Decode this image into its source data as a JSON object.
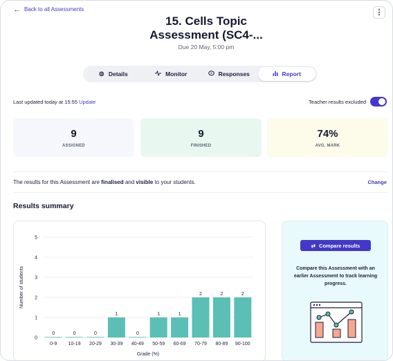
{
  "header": {
    "back_label": "Back to all Assessments",
    "more_icon": "kebab-menu-icon",
    "title_line1": "15. Cells Topic",
    "title_line2": "Assessment (SC4-...",
    "due": "Due 20 May, 5:00 pm"
  },
  "tabs": [
    {
      "label": "Details",
      "icon": "gear-icon",
      "active": false
    },
    {
      "label": "Monitor",
      "icon": "pulse-icon",
      "active": false
    },
    {
      "label": "Responses",
      "icon": "chat-icon",
      "active": false
    },
    {
      "label": "Report",
      "icon": "bar-chart-icon",
      "active": true
    }
  ],
  "status": {
    "updated_text": "Last updated today at 15:55",
    "update_link": "Update",
    "teacher_excluded_label": "Teacher results excluded",
    "teacher_excluded_on": true
  },
  "stats": [
    {
      "value": "9",
      "label": "ASSIGNED"
    },
    {
      "value": "9",
      "label": "FINISHED"
    },
    {
      "value": "74%",
      "label": "AVG. MARK"
    }
  ],
  "finalised": {
    "prefix": "The results for this Assessment are ",
    "word1": "finalised",
    "middle": " and ",
    "word2": "visible",
    "suffix": " to your students.",
    "change_label": "Change"
  },
  "results_heading": "Results summary",
  "compare": {
    "button_label": "Compare results",
    "text": "Compare this Assessment with an earlier Assessment to track learning progress."
  },
  "colors": {
    "accent": "#4338ca",
    "bar": "#5bbfb5"
  },
  "chart_data": {
    "type": "bar",
    "categories": [
      "0-9",
      "10-19",
      "20-29",
      "30-39",
      "40-49",
      "50-59",
      "60-69",
      "70-79",
      "80-89",
      "90-100"
    ],
    "values": [
      0,
      0,
      0,
      1,
      0,
      1,
      1,
      2,
      2,
      2
    ],
    "title": "",
    "xlabel": "Grade (%)",
    "ylabel": "Number of students",
    "ylim": [
      0,
      5
    ],
    "yticks": [
      0,
      1,
      2,
      3,
      4,
      5
    ],
    "grid": true,
    "data_labels": true
  }
}
